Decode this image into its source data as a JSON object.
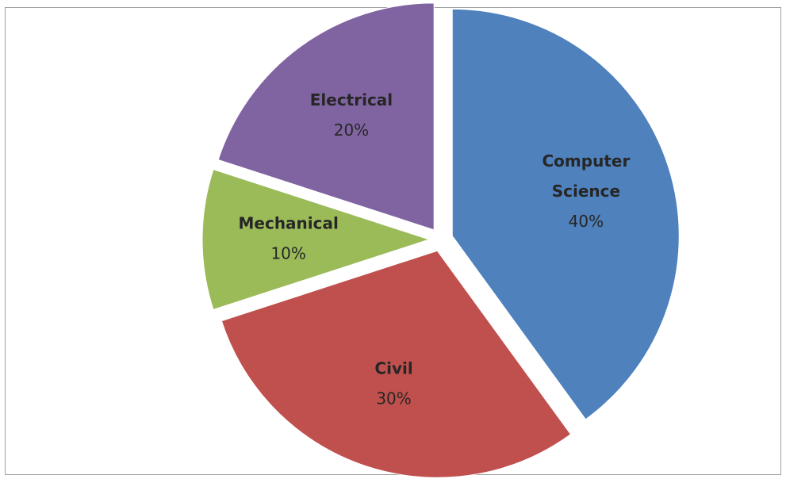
{
  "chart_data": {
    "type": "pie",
    "exploded": true,
    "slices": [
      {
        "name": "Computer Science",
        "label_lines": [
          "Computer",
          "Science"
        ],
        "percent_label": "40%",
        "value": 40,
        "color": "#4f81bd"
      },
      {
        "name": "Civil",
        "label_lines": [
          "Civil"
        ],
        "percent_label": "30%",
        "value": 30,
        "color": "#c0504d"
      },
      {
        "name": "Mechanical",
        "label_lines": [
          "Mechanical"
        ],
        "percent_label": "10%",
        "value": 10,
        "color": "#9bbb59"
      },
      {
        "name": "Electrical",
        "label_lines": [
          "Electrical"
        ],
        "percent_label": "20%",
        "value": 20,
        "color": "#8064a2"
      }
    ]
  }
}
